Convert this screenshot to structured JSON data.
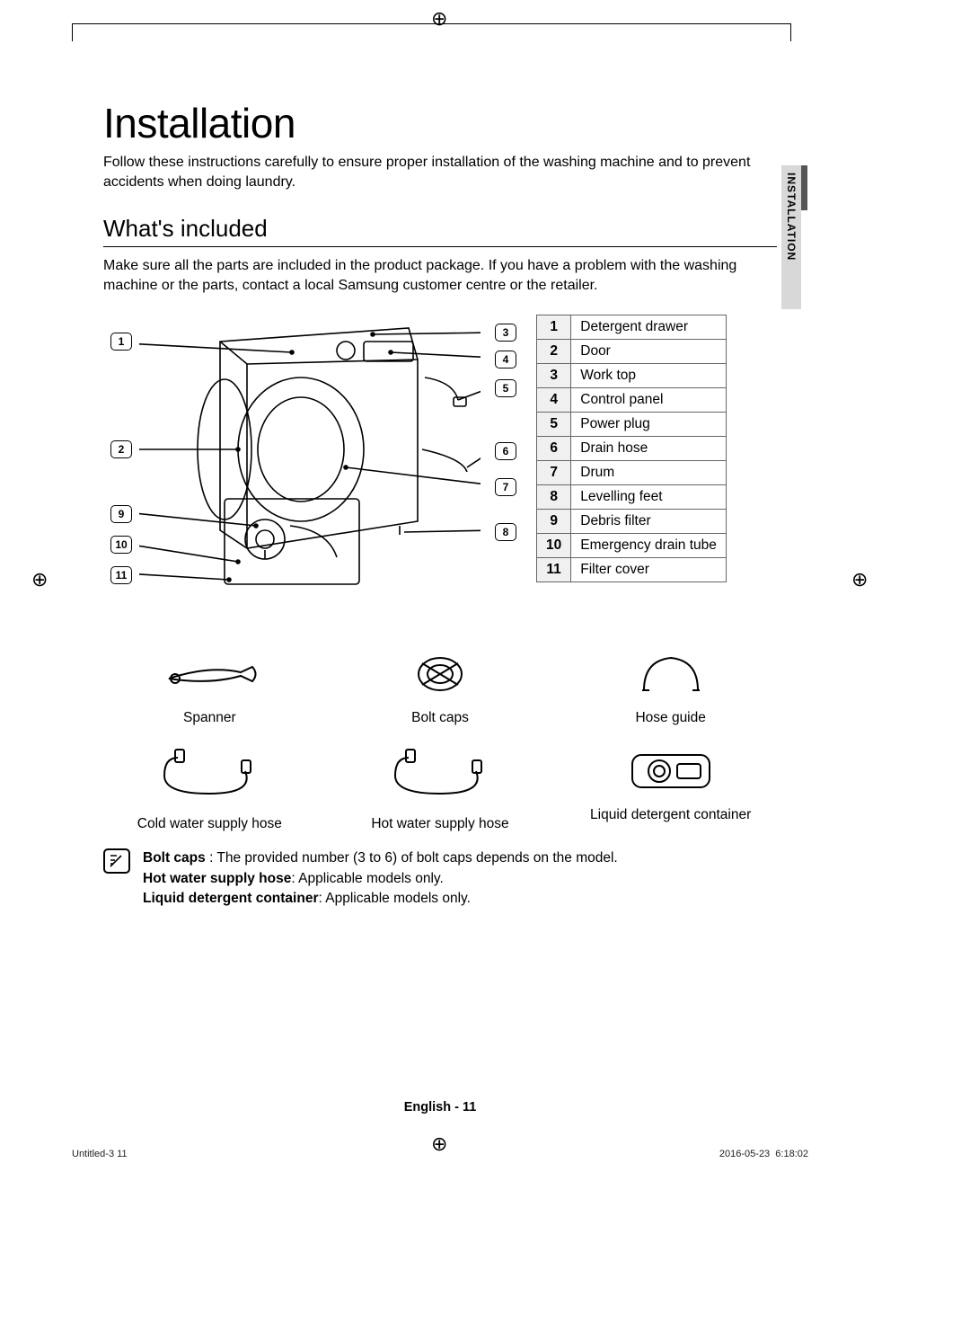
{
  "title": "Installation",
  "intro": "Follow these instructions carefully to ensure proper installation of the washing machine and to prevent accidents when doing laundry.",
  "section_heading": "What's included",
  "section_sub": "Make sure all the parts are included in the product package. If you have a problem with the washing machine or the parts, contact a local Samsung customer centre or the retailer.",
  "side_tab": "INSTALLATION",
  "callouts_left": [
    "1",
    "2",
    "9",
    "10",
    "11"
  ],
  "callouts_right": [
    "3",
    "4",
    "5",
    "6",
    "7",
    "8"
  ],
  "parts": [
    {
      "n": "1",
      "label": "Detergent drawer"
    },
    {
      "n": "2",
      "label": "Door"
    },
    {
      "n": "3",
      "label": "Work top"
    },
    {
      "n": "4",
      "label": "Control panel"
    },
    {
      "n": "5",
      "label": "Power plug"
    },
    {
      "n": "6",
      "label": "Drain hose"
    },
    {
      "n": "7",
      "label": "Drum"
    },
    {
      "n": "8",
      "label": "Levelling feet"
    },
    {
      "n": "9",
      "label": "Debris filter"
    },
    {
      "n": "10",
      "label": "Emergency drain tube"
    },
    {
      "n": "11",
      "label": "Filter cover"
    }
  ],
  "accessories": [
    {
      "name": "Spanner"
    },
    {
      "name": "Bolt caps"
    },
    {
      "name": "Hose guide"
    },
    {
      "name": "Cold water supply hose"
    },
    {
      "name": "Hot water supply hose"
    },
    {
      "name": "Liquid detergent container"
    }
  ],
  "notes": {
    "line1_bold": "Bolt caps",
    "line1_rest": " : The provided number (3 to 6) of bolt caps depends on the model.",
    "line2_bold": "Hot water supply hose",
    "line2_rest": ": Applicable models only.",
    "line3_bold": "Liquid detergent container",
    "line3_rest": ": Applicable models only."
  },
  "footer": "English - 11",
  "meta_left": "Untitled-3   11",
  "meta_right": "2016-05-23   ‎ 6:18:02",
  "colors": {
    "rule": "#000000",
    "table_border": "#666666",
    "num_bg": "#f0f0f0",
    "tab_bg": "#d8d8d8",
    "tab_dark": "#555555"
  }
}
